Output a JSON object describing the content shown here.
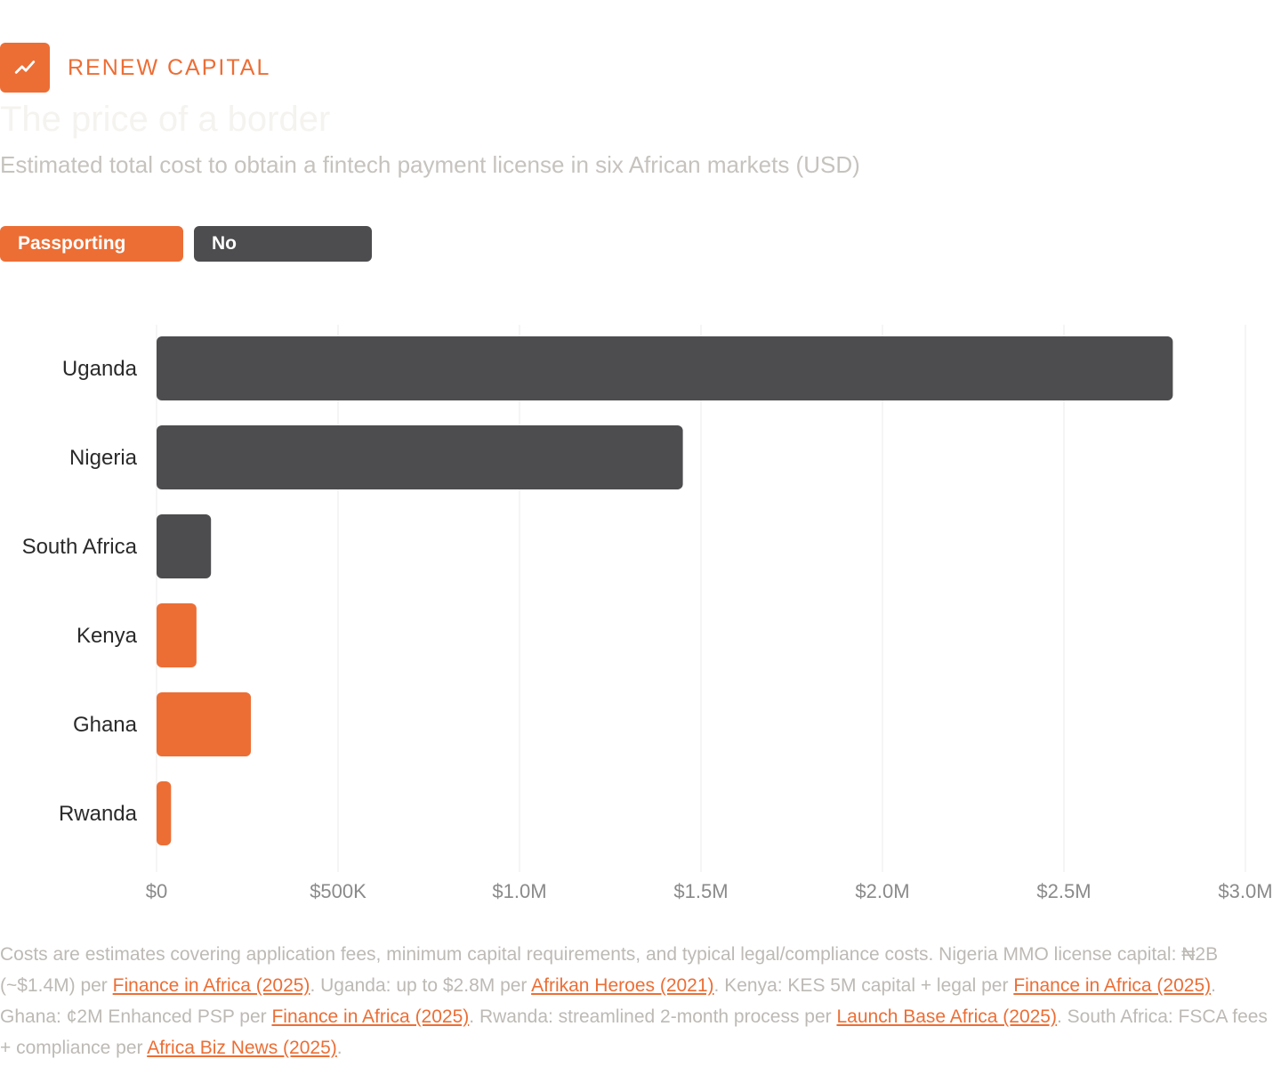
{
  "brand": {
    "name": "RENEW CAPITAL",
    "logo_icon": "trend-line-icon",
    "accent": "#ec6e35"
  },
  "header": {
    "title": "The price of a border",
    "subtitle": "Estimated total cost to obtain a fintech payment license in six African markets (USD)"
  },
  "legend": [
    {
      "label": "Passporting",
      "color": "#ec6e35"
    },
    {
      "label": "No",
      "color": "#4d4d4f"
    }
  ],
  "chart_data": {
    "type": "bar",
    "orientation": "horizontal",
    "categories": [
      "Uganda",
      "Nigeria",
      "South Africa",
      "Kenya",
      "Ghana",
      "Rwanda"
    ],
    "values": [
      2800000,
      1450000,
      150000,
      110000,
      260000,
      40000
    ],
    "groups": [
      "No",
      "No",
      "No",
      "Passporting",
      "Passporting",
      "Passporting"
    ],
    "colors": {
      "Passporting": "#ec6e35",
      "No": "#4d4d4f"
    },
    "xlim": [
      0,
      3000000
    ],
    "xticks": [
      0,
      500000,
      1000000,
      1500000,
      2000000,
      2500000,
      3000000
    ],
    "xtick_labels": [
      "$0",
      "$500K",
      "$1.0M",
      "$1.5M",
      "$2.0M",
      "$2.5M",
      "$3.0M"
    ],
    "grid": true,
    "legend_position": "top-left"
  },
  "notes": {
    "p1": "Costs are estimates covering application fees, minimum capital requirements, and typical legal/compliance costs. Nigeria MMO license capital: ₦2B (~$1.4M) per ",
    "l1": "Finance in Africa (2025)",
    "p2": ". Uganda: up to $2.8M per ",
    "l2": "Afrikan Heroes (2021)",
    "p3": ". Kenya: KES 5M capital + legal per ",
    "l3": "Finance in Africa (2025)",
    "p4": ". Ghana: ¢2M Enhanced PSP per ",
    "l4": "Finance in Africa (2025)",
    "p5": ". Rwanda: streamlined 2-month process per ",
    "l5": "Launch Base Africa (2025)",
    "p6": ". South Africa: FSCA fees + compliance per ",
    "l6": "Africa Biz News (2025)",
    "p7": "."
  }
}
